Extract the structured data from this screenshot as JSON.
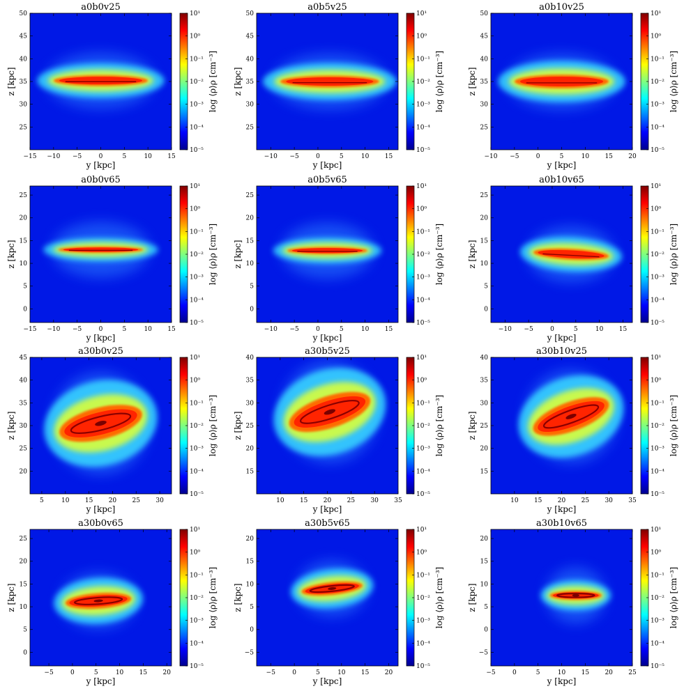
{
  "colorbar": {
    "label": "log ⟨ρ⟩ρ [cm⁻³]",
    "ticks": [
      "10¹",
      "10⁰",
      "10⁻¹",
      "10⁻²",
      "10⁻³",
      "10⁻⁴",
      "10⁻⁵"
    ],
    "range_log10": [
      -5,
      1
    ],
    "colormap": "jet"
  },
  "chart_data": [
    {
      "type": "heatmap",
      "title": "a0b0v25",
      "xlabel": "y [kpc]",
      "ylabel": "z [kpc]",
      "xlim": [
        -15,
        15
      ],
      "ylim": [
        20,
        50
      ],
      "xticks": [
        -15,
        -10,
        -5,
        0,
        5,
        10,
        15
      ],
      "yticks": [
        25,
        30,
        35,
        40,
        45,
        50
      ],
      "disk": {
        "center": [
          0,
          35.2
        ],
        "half_width": 10,
        "half_thickness": 1.2,
        "tilt_deg": 0,
        "ring": false
      }
    },
    {
      "type": "heatmap",
      "title": "a0b5v25",
      "xlabel": "y [kpc]",
      "ylabel": "z [kpc]",
      "xlim": [
        -13,
        17
      ],
      "ylim": [
        20,
        50
      ],
      "xticks": [
        -10,
        -5,
        0,
        5,
        10,
        15
      ],
      "yticks": [
        25,
        30,
        35,
        40,
        45,
        50
      ],
      "disk": {
        "center": [
          2.5,
          35
        ],
        "half_width": 10.5,
        "half_thickness": 1.3,
        "tilt_deg": 0,
        "ring": false
      }
    },
    {
      "type": "heatmap",
      "title": "a0b10v25",
      "xlabel": "y [kpc]",
      "ylabel": "z [kpc]",
      "xlim": [
        -10,
        20
      ],
      "ylim": [
        20,
        50
      ],
      "xticks": [
        -10,
        -5,
        0,
        5,
        10,
        15,
        20
      ],
      "yticks": [
        25,
        30,
        35,
        40,
        45,
        50
      ],
      "disk": {
        "center": [
          5,
          35
        ],
        "half_width": 10,
        "half_thickness": 1.5,
        "tilt_deg": 0,
        "ring": false
      }
    },
    {
      "type": "heatmap",
      "title": "a0b0v65",
      "xlabel": "y [kpc]",
      "ylabel": "z [kpc]",
      "xlim": [
        -15,
        15
      ],
      "ylim": [
        -3,
        27
      ],
      "xticks": [
        -15,
        -10,
        -5,
        0,
        5,
        10,
        15
      ],
      "yticks": [
        0,
        5,
        10,
        15,
        20,
        25
      ],
      "disk": {
        "center": [
          0,
          13
        ],
        "half_width": 9,
        "half_thickness": 0.7,
        "tilt_deg": 0,
        "ring": false
      }
    },
    {
      "type": "heatmap",
      "title": "a0b5v65",
      "xlabel": "y [kpc]",
      "ylabel": "z [kpc]",
      "xlim": [
        -13,
        17
      ],
      "ylim": [
        -3,
        27
      ],
      "xticks": [
        -10,
        -5,
        0,
        5,
        10,
        15
      ],
      "yticks": [
        0,
        5,
        10,
        15,
        20,
        25
      ],
      "disk": {
        "center": [
          2,
          12.8
        ],
        "half_width": 8.5,
        "half_thickness": 0.8,
        "tilt_deg": 0,
        "ring": false
      }
    },
    {
      "type": "heatmap",
      "title": "a0b10v65",
      "xlabel": "y [kpc]",
      "ylabel": "z [kpc]",
      "xlim": [
        -13,
        17
      ],
      "ylim": [
        -3,
        27
      ],
      "xticks": [
        -10,
        -5,
        0,
        5,
        10,
        15
      ],
      "yticks": [
        0,
        5,
        10,
        15,
        20,
        25
      ],
      "disk": {
        "center": [
          4,
          12
        ],
        "half_width": 8,
        "half_thickness": 1.2,
        "tilt_deg": 3,
        "ring": false
      }
    },
    {
      "type": "heatmap",
      "title": "a30b0v25",
      "xlabel": "y [kpc]",
      "ylabel": "z [kpc]",
      "xlim": [
        2.5,
        32.5
      ],
      "ylim": [
        15,
        45
      ],
      "xticks": [
        5,
        10,
        15,
        20,
        25,
        30
      ],
      "yticks": [
        20,
        25,
        30,
        35,
        40,
        45
      ],
      "disk": {
        "center": [
          17.5,
          30.5
        ],
        "half_width": 9,
        "half_thickness": 3.5,
        "tilt_deg": -14,
        "ring": true
      }
    },
    {
      "type": "heatmap",
      "title": "a30b5v25",
      "xlabel": "y [kpc]",
      "ylabel": "z [kpc]",
      "xlim": [
        5,
        35
      ],
      "ylim": [
        10,
        40
      ],
      "xticks": [
        10,
        15,
        20,
        25,
        30,
        35
      ],
      "yticks": [
        15,
        20,
        25,
        30,
        35,
        40
      ],
      "disk": {
        "center": [
          20.5,
          28
        ],
        "half_width": 9,
        "half_thickness": 3.5,
        "tilt_deg": -18,
        "ring": true
      }
    },
    {
      "type": "heatmap",
      "title": "a30b10v25",
      "xlabel": "y [kpc]",
      "ylabel": "z [kpc]",
      "xlim": [
        5,
        35
      ],
      "ylim": [
        10,
        40
      ],
      "xticks": [
        10,
        15,
        20,
        25,
        30,
        35
      ],
      "yticks": [
        15,
        20,
        25,
        30,
        35,
        40
      ],
      "disk": {
        "center": [
          22,
          27
        ],
        "half_width": 8.5,
        "half_thickness": 3.2,
        "tilt_deg": -20,
        "ring": true
      }
    },
    {
      "type": "heatmap",
      "title": "a30b0v65",
      "xlabel": "y [kpc]",
      "ylabel": "z [kpc]",
      "xlim": [
        -9,
        21
      ],
      "ylim": [
        -3,
        27
      ],
      "xticks": [
        -5,
        0,
        5,
        10,
        15,
        20
      ],
      "yticks": [
        0,
        5,
        10,
        15,
        20,
        25
      ],
      "disk": {
        "center": [
          5.5,
          11.3
        ],
        "half_width": 7,
        "half_thickness": 1.7,
        "tilt_deg": -4,
        "ring": true
      }
    },
    {
      "type": "heatmap",
      "title": "a30b5v65",
      "xlabel": "y [kpc]",
      "ylabel": "z [kpc]",
      "xlim": [
        -8,
        22
      ],
      "ylim": [
        -8,
        22
      ],
      "xticks": [
        -5,
        0,
        5,
        10,
        15,
        20
      ],
      "yticks": [
        -5,
        0,
        5,
        10,
        15,
        20
      ],
      "disk": {
        "center": [
          8,
          9
        ],
        "half_width": 6.5,
        "half_thickness": 1.4,
        "tilt_deg": -6,
        "ring": true
      }
    },
    {
      "type": "heatmap",
      "title": "a30b10v65",
      "xlabel": "y [kpc]",
      "ylabel": "z [kpc]",
      "xlim": [
        -5,
        25
      ],
      "ylim": [
        -8,
        22
      ],
      "xticks": [
        -5,
        0,
        5,
        10,
        15,
        20,
        25
      ],
      "yticks": [
        -5,
        0,
        5,
        10,
        15,
        20
      ],
      "disk": {
        "center": [
          13,
          7.5
        ],
        "half_width": 5.5,
        "half_thickness": 1,
        "tilt_deg": 0,
        "ring": true
      }
    }
  ]
}
